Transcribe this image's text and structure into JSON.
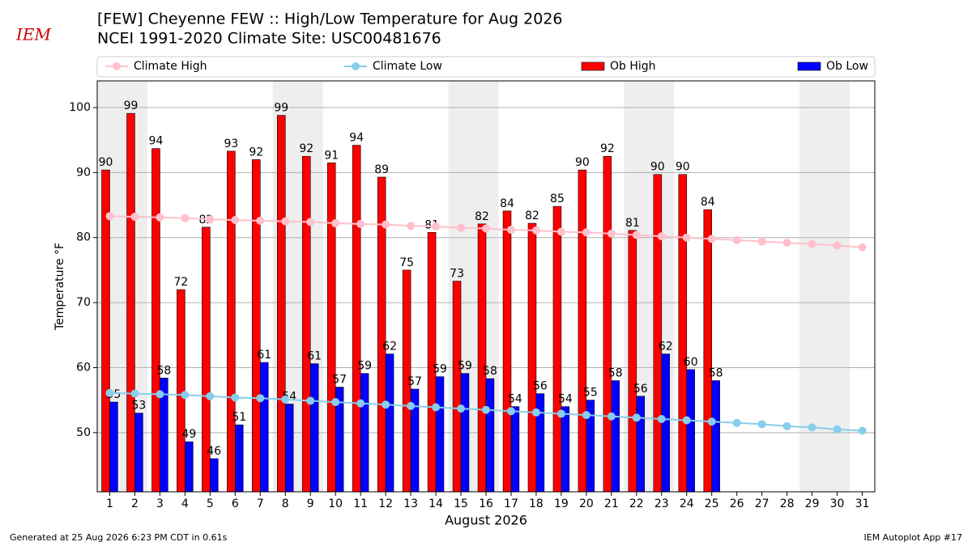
{
  "chart_data": {
    "type": "bar",
    "title": "[FEW] Cheyenne FEW :: High/Low Temperature for Aug 2026",
    "subtitle": "NCEI 1991-2020 Climate Site: USC00481676",
    "logo": "IEM",
    "xlabel": "August 2026",
    "ylabel": "Temperature °F",
    "footer_left": "Generated at 25 Aug 2026 6:23 PM CDT in 0.61s",
    "footer_right": "IEM Autoplot App #17",
    "x": [
      1,
      2,
      3,
      4,
      5,
      6,
      7,
      8,
      9,
      10,
      11,
      12,
      13,
      14,
      15,
      16,
      17,
      18,
      19,
      20,
      21,
      22,
      23,
      24,
      25,
      26,
      27,
      28,
      29,
      30,
      31
    ],
    "xlim": [
      0.5,
      31.5
    ],
    "xticks": [
      1,
      2,
      3,
      4,
      5,
      6,
      7,
      8,
      9,
      10,
      11,
      12,
      13,
      14,
      15,
      16,
      17,
      18,
      19,
      20,
      21,
      22,
      23,
      24,
      25,
      26,
      27,
      28,
      29,
      30,
      31
    ],
    "ylim": [
      40.9,
      104.1
    ],
    "yticks": [
      50,
      60,
      70,
      80,
      90,
      100
    ],
    "grid": true,
    "legend": "top",
    "shaded_ranges": [
      [
        1,
        2
      ],
      [
        8,
        9
      ],
      [
        15,
        16
      ],
      [
        22,
        23
      ],
      [
        29,
        30
      ]
    ],
    "shade_color": "#eeeeee",
    "series": [
      {
        "name": "Climate High",
        "type": "line",
        "color": "#ffc0cb",
        "values": [
          83.3,
          83.2,
          83.1,
          83.0,
          82.8,
          82.7,
          82.6,
          82.5,
          82.4,
          82.2,
          82.1,
          82.0,
          81.8,
          81.7,
          81.5,
          81.4,
          81.2,
          81.1,
          80.9,
          80.8,
          80.6,
          80.4,
          80.2,
          80.0,
          79.8,
          79.6,
          79.4,
          79.2,
          79.0,
          78.8,
          78.5
        ]
      },
      {
        "name": "Climate Low",
        "type": "line",
        "color": "#87ceeb",
        "values": [
          56.1,
          56.0,
          55.9,
          55.8,
          55.6,
          55.4,
          55.3,
          55.1,
          54.9,
          54.7,
          54.5,
          54.3,
          54.1,
          53.9,
          53.7,
          53.5,
          53.3,
          53.1,
          52.9,
          52.7,
          52.5,
          52.3,
          52.1,
          51.9,
          51.7,
          51.5,
          51.3,
          51.0,
          50.8,
          50.5,
          50.3
        ]
      },
      {
        "name": "Ob High",
        "type": "bar",
        "color": "#ff0000",
        "values": [
          90.4,
          99.1,
          93.7,
          72.0,
          81.6,
          93.3,
          92.0,
          98.8,
          92.5,
          91.5,
          94.2,
          89.3,
          75.0,
          80.8,
          73.3,
          82.1,
          84.1,
          82.2,
          84.8,
          90.4,
          92.5,
          81.1,
          89.7,
          89.7,
          84.3,
          null,
          null,
          null,
          null,
          null,
          null
        ],
        "value_labels": [
          "90",
          "99",
          "94",
          "72",
          "82",
          "93",
          "92",
          "99",
          "92",
          "91",
          "94",
          "89",
          "75",
          "81",
          "73",
          "82",
          "84",
          "82",
          "85",
          "90",
          "92",
          "81",
          "90",
          "90",
          "84",
          null,
          null,
          null,
          null,
          null,
          null
        ]
      },
      {
        "name": "Ob Low",
        "type": "bar",
        "color": "#0000ff",
        "values": [
          54.7,
          53.0,
          58.4,
          48.6,
          46.0,
          51.2,
          60.8,
          54.4,
          60.6,
          57.0,
          59.1,
          62.1,
          56.7,
          58.6,
          59.1,
          58.3,
          54.0,
          56.0,
          54.0,
          55.0,
          58.0,
          55.6,
          62.1,
          59.7,
          58.0,
          null,
          null,
          null,
          null,
          null,
          null
        ],
        "value_labels": [
          "55",
          "53",
          "58",
          "49",
          "46",
          "51",
          "61",
          "54",
          "61",
          "57",
          "59",
          "62",
          "57",
          "59",
          "59",
          "58",
          "54",
          "56",
          "54",
          "55",
          "58",
          "56",
          "62",
          "60",
          "58",
          null,
          null,
          null,
          null,
          null,
          null
        ]
      }
    ]
  }
}
